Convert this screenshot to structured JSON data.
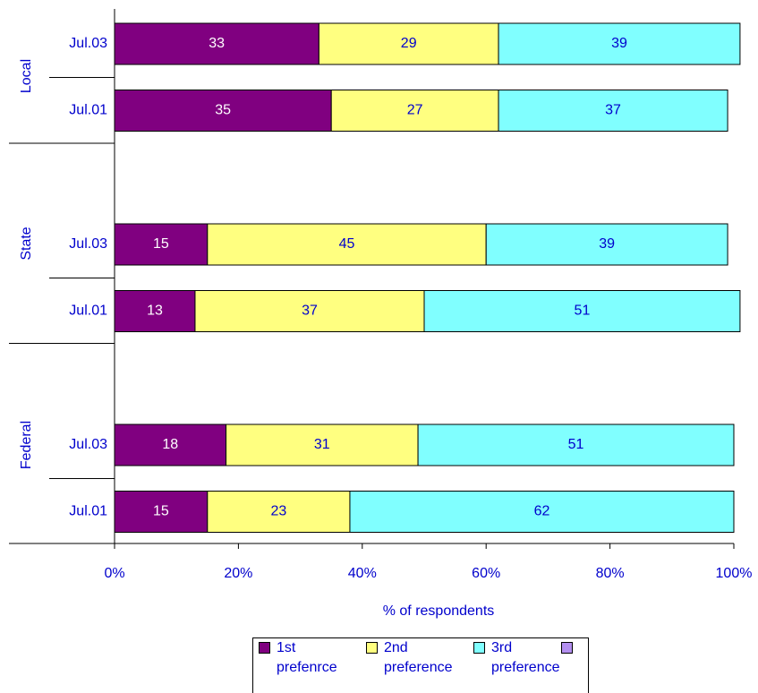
{
  "chart_data": {
    "type": "stacked_bar_horizontal",
    "groups": [
      {
        "name": "Local",
        "categories": [
          "Jul.03",
          "Jul.01"
        ]
      },
      {
        "name": "State",
        "categories": [
          "Jul.03",
          "Jul.01"
        ]
      },
      {
        "name": "Federal",
        "categories": [
          "Jul.03",
          "Jul.01"
        ]
      }
    ],
    "series": [
      {
        "name": "1st prefenrce",
        "color": "#800080",
        "values": [
          33,
          35,
          15,
          13,
          18,
          15
        ]
      },
      {
        "name": "2nd preference",
        "color": "#ffff80",
        "values": [
          29,
          27,
          45,
          37,
          31,
          23
        ]
      },
      {
        "name": "3rd preference",
        "color": "#80ffff",
        "values": [
          39,
          37,
          39,
          51,
          51,
          62
        ]
      }
    ],
    "xlim": [
      0,
      100
    ],
    "xticks": [
      {
        "value": 0,
        "label": "0%"
      },
      {
        "value": 20,
        "label": "20%"
      },
      {
        "value": 40,
        "label": "40%"
      },
      {
        "value": 60,
        "label": "60%"
      },
      {
        "value": 80,
        "label": "80%"
      },
      {
        "value": 100,
        "label": "100%"
      }
    ],
    "xlabel": "% of respondents",
    "legend": "bottom"
  }
}
